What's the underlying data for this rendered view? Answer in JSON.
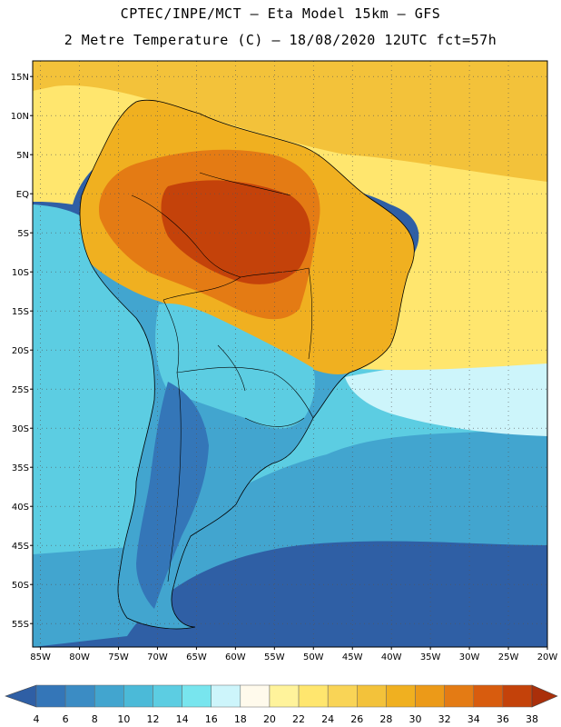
{
  "header": {
    "line1": "CPTEC/INPE/MCT –  Eta Model 15km – GFS",
    "line2": "2 Metre Temperature (C) – 18/08/2020 12UTC fct=57h"
  },
  "map": {
    "lat_range": [
      -58,
      17
    ],
    "lon_range": [
      -86,
      -20
    ],
    "lat_ticks": [
      {
        "value": 15,
        "label": "15N"
      },
      {
        "value": 10,
        "label": "10N"
      },
      {
        "value": 5,
        "label": "5N"
      },
      {
        "value": 0,
        "label": "EQ"
      },
      {
        "value": -5,
        "label": "5S"
      },
      {
        "value": -10,
        "label": "10S"
      },
      {
        "value": -15,
        "label": "15S"
      },
      {
        "value": -20,
        "label": "20S"
      },
      {
        "value": -25,
        "label": "25S"
      },
      {
        "value": -30,
        "label": "30S"
      },
      {
        "value": -35,
        "label": "35S"
      },
      {
        "value": -40,
        "label": "40S"
      },
      {
        "value": -45,
        "label": "45S"
      },
      {
        "value": -50,
        "label": "50S"
      },
      {
        "value": -55,
        "label": "55S"
      }
    ],
    "lon_ticks": [
      {
        "value": -85,
        "label": "85W"
      },
      {
        "value": -80,
        "label": "80W"
      },
      {
        "value": -75,
        "label": "75W"
      },
      {
        "value": -70,
        "label": "70W"
      },
      {
        "value": -65,
        "label": "65W"
      },
      {
        "value": -60,
        "label": "60W"
      },
      {
        "value": -55,
        "label": "55W"
      },
      {
        "value": -50,
        "label": "50W"
      },
      {
        "value": -45,
        "label": "45W"
      },
      {
        "value": -40,
        "label": "40W"
      },
      {
        "value": -35,
        "label": "35W"
      },
      {
        "value": -30,
        "label": "30W"
      },
      {
        "value": -25,
        "label": "25W"
      },
      {
        "value": -20,
        "label": "20W"
      }
    ]
  },
  "colorbar": {
    "labels": [
      "4",
      "6",
      "8",
      "10",
      "12",
      "14",
      "16",
      "18",
      "20",
      "22",
      "24",
      "26",
      "28",
      "30",
      "32",
      "34",
      "36",
      "38"
    ],
    "colors": [
      "#2f5fa5",
      "#3476b8",
      "#3b8cc4",
      "#42a5cf",
      "#4bbad8",
      "#5ccde2",
      "#78e5ee",
      "#cdf5fb",
      "#fffaec",
      "#fff39b",
      "#ffe66e",
      "#f9d456",
      "#f3c23a",
      "#f0b020",
      "#ec9a18",
      "#e47b14",
      "#d85c0e",
      "#c4420a",
      "#aa2f0a"
    ]
  },
  "regions": {
    "ocean_cold": "#2f5fa5",
    "ocean_mid": "#42a5cf",
    "ocean_cool": "#5ccde2",
    "ocean_pale": "#cdf5fb",
    "ocean_warm_n": "#ffe66e",
    "ocean_hot_n": "#f3c23a",
    "land_south": "#42a5cf",
    "land_andes_s": "#3476b8",
    "land_central": "#5ccde2",
    "land_north": "#f0b020",
    "land_amazon": "#e47b14",
    "land_core": "#c4420a"
  }
}
